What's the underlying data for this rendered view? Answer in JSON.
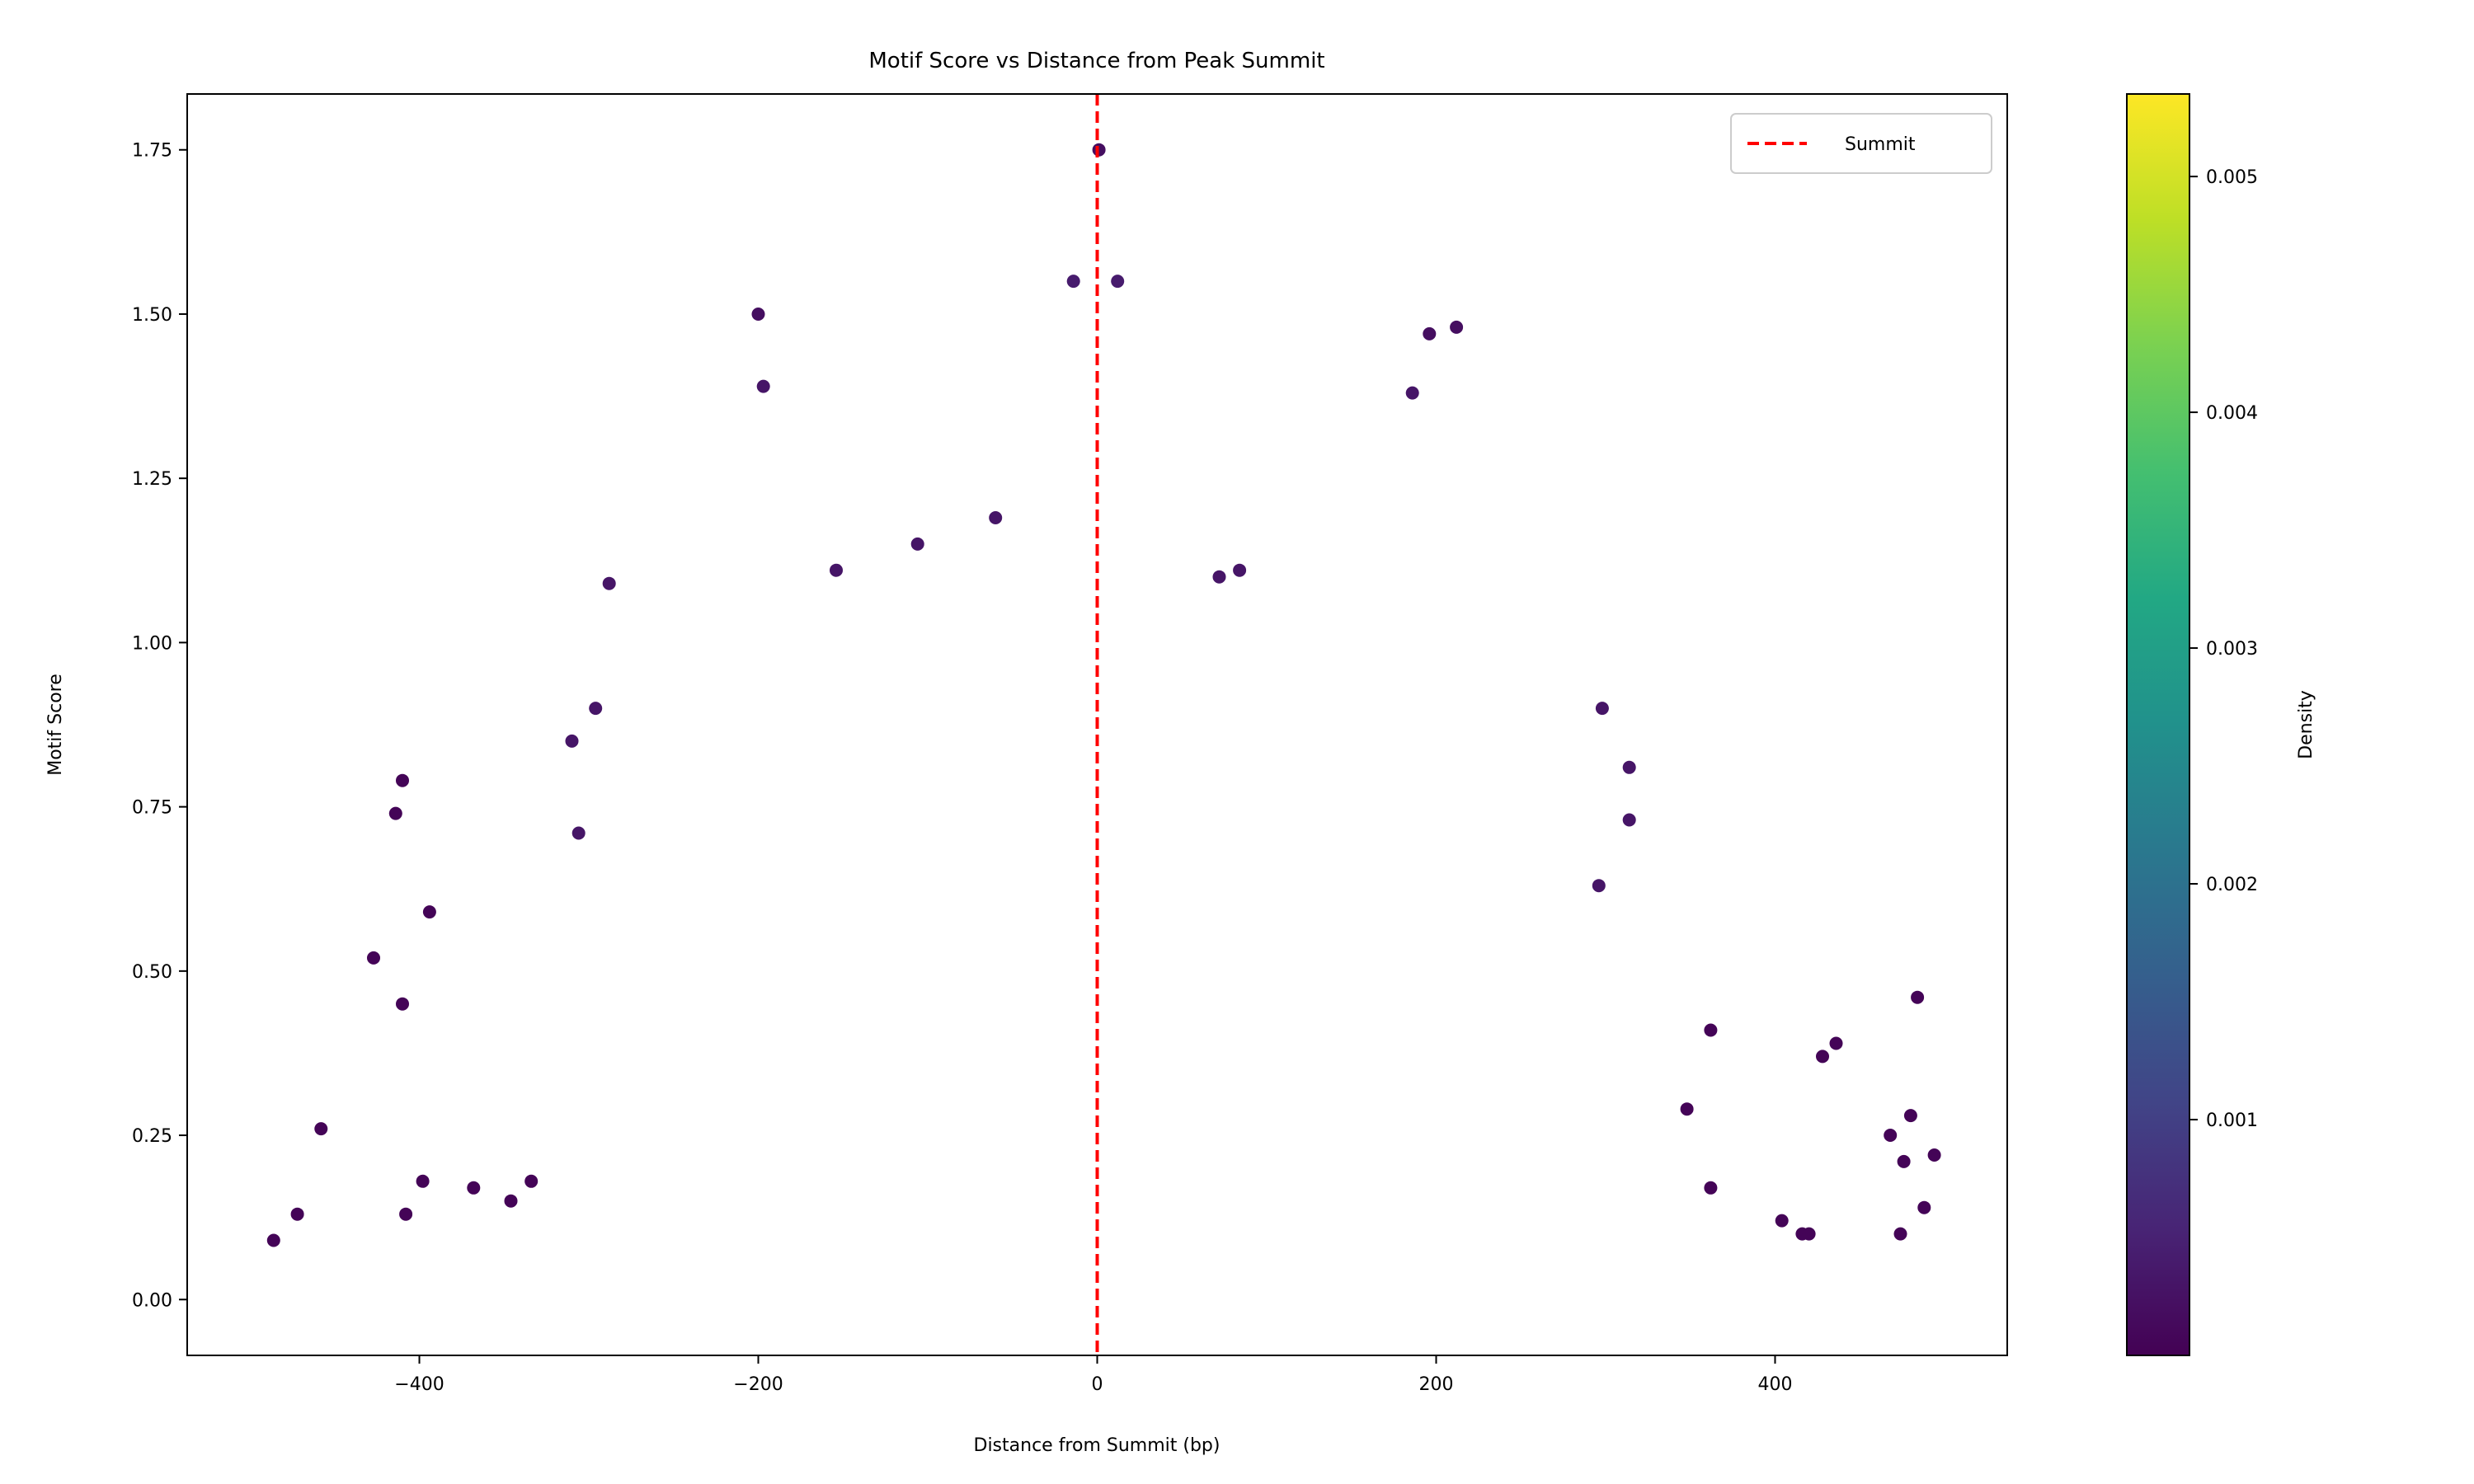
{
  "chart_data": {
    "type": "scatter",
    "title": "Motif Score vs Distance from Peak Summit",
    "xlabel": "Distance from Summit (bp)",
    "ylabel": "Motif Score",
    "xlim": [
      -537,
      537
    ],
    "ylim": [
      -0.085,
      1.835
    ],
    "xticks": [
      -400,
      -200,
      0,
      200,
      400
    ],
    "xtick_labels": [
      "−400",
      "−200",
      "0",
      "200",
      "400"
    ],
    "yticks": [
      0.0,
      0.25,
      0.5,
      0.75,
      1.0,
      1.25,
      1.5,
      1.75
    ],
    "ytick_labels": [
      "0.00",
      "0.25",
      "0.50",
      "0.75",
      "1.00",
      "1.25",
      "1.50",
      "1.75"
    ],
    "grid": false,
    "legend": {
      "placement": "top-right",
      "entries": [
        {
          "label": "Summit",
          "style": "dashed",
          "color": "#ff0000"
        }
      ]
    },
    "reference_line": {
      "x": 0,
      "label": "Summit",
      "color": "#ff0000",
      "style": "dashed"
    },
    "colormap": "viridis",
    "colorbar": {
      "label": "Density",
      "range": [
        0.0,
        0.00535
      ],
      "ticks": [
        0.001,
        0.002,
        0.003,
        0.004,
        0.005
      ],
      "tick_labels": [
        "0.001",
        "0.002",
        "0.003",
        "0.004",
        "0.005"
      ]
    },
    "series": [
      {
        "color_by": "density",
        "points": [
          {
            "x": -486,
            "y": 0.09,
            "d": 5e-05
          },
          {
            "x": -472,
            "y": 0.13,
            "d": 5e-05
          },
          {
            "x": -458,
            "y": 0.26,
            "d": 5e-05
          },
          {
            "x": -427,
            "y": 0.52,
            "d": 5e-05
          },
          {
            "x": -414,
            "y": 0.74,
            "d": 5e-05
          },
          {
            "x": -410,
            "y": 0.79,
            "d": 5e-05
          },
          {
            "x": -410,
            "y": 0.45,
            "d": 5e-05
          },
          {
            "x": -408,
            "y": 0.13,
            "d": 5e-05
          },
          {
            "x": -398,
            "y": 0.18,
            "d": 5e-05
          },
          {
            "x": -394,
            "y": 0.59,
            "d": 5e-05
          },
          {
            "x": -368,
            "y": 0.17,
            "d": 5e-05
          },
          {
            "x": -346,
            "y": 0.15,
            "d": 5e-05
          },
          {
            "x": -334,
            "y": 0.18,
            "d": 5e-05
          },
          {
            "x": 404,
            "y": 0.12,
            "d": 5e-05
          },
          {
            "x": 416,
            "y": 0.1,
            "d": 5e-05
          },
          {
            "x": 420,
            "y": 0.1,
            "d": 5e-05
          },
          {
            "x": 428,
            "y": 0.37,
            "d": 5e-05
          },
          {
            "x": 436,
            "y": 0.39,
            "d": 5e-05
          },
          {
            "x": 468,
            "y": 0.25,
            "d": 5e-05
          },
          {
            "x": 474,
            "y": 0.1,
            "d": 5e-05
          },
          {
            "x": 476,
            "y": 0.21,
            "d": 5e-05
          },
          {
            "x": 480,
            "y": 0.28,
            "d": 5e-05
          },
          {
            "x": 484,
            "y": 0.46,
            "d": 5e-05
          },
          {
            "x": 488,
            "y": 0.14,
            "d": 5e-05
          },
          {
            "x": 494,
            "y": 0.22,
            "d": 5e-05
          },
          {
            "x": 362,
            "y": 0.41,
            "d": 5e-05
          },
          {
            "x": 362,
            "y": 0.17,
            "d": 5e-05
          },
          {
            "x": 348,
            "y": 0.29,
            "d": 5e-05
          },
          {
            "x": 1,
            "y": 1.75,
            "d": 0.0002
          },
          {
            "x": -200,
            "y": 1.5,
            "d": 0.0002
          },
          {
            "x": 196,
            "y": 1.47,
            "d": 0.0002
          },
          {
            "x": 212,
            "y": 1.48,
            "d": 0.0002
          },
          {
            "x": -14,
            "y": 1.55,
            "d": 0.0004
          },
          {
            "x": 12,
            "y": 1.55,
            "d": 0.0004
          },
          {
            "x": -197,
            "y": 1.39,
            "d": 0.0003
          },
          {
            "x": 186,
            "y": 1.38,
            "d": 0.0003
          },
          {
            "x": -60,
            "y": 1.19,
            "d": 0.0003
          },
          {
            "x": -106,
            "y": 1.15,
            "d": 0.0003
          },
          {
            "x": -154,
            "y": 1.11,
            "d": 0.0003
          },
          {
            "x": 72,
            "y": 1.1,
            "d": 0.0003
          },
          {
            "x": 84,
            "y": 1.11,
            "d": 0.0003
          },
          {
            "x": 298,
            "y": 0.9,
            "d": 0.0003
          },
          {
            "x": 314,
            "y": 0.81,
            "d": 0.0003
          },
          {
            "x": 314,
            "y": 0.73,
            "d": 0.0003
          },
          {
            "x": 296,
            "y": 0.63,
            "d": 0.0003
          },
          {
            "x": -310,
            "y": 0.85,
            "d": 0.0003
          },
          {
            "x": -306,
            "y": 0.71,
            "d": 0.0003
          },
          {
            "x": -296,
            "y": 0.9,
            "d": 0.0003
          },
          {
            "x": -288,
            "y": 1.09,
            "d": 0.0003
          }
        ]
      }
    ]
  }
}
